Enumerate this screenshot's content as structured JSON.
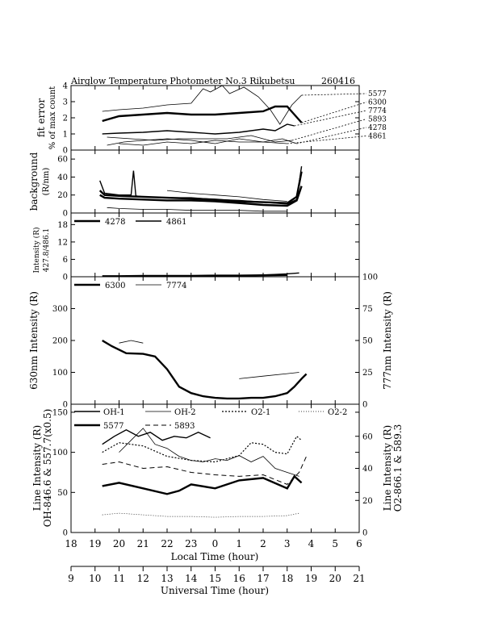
{
  "title": "Airglow Temperature Photometer No.3  Rikubetsu",
  "date_code": "260416",
  "local_axis": {
    "label": "Local Time (hour)",
    "ticks": [
      "18",
      "19",
      "20",
      "21",
      "22",
      "23",
      "0",
      "1",
      "2",
      "3",
      "4",
      "5",
      "6"
    ]
  },
  "ut_axis": {
    "label": "Universal Time (hour)",
    "ticks": [
      "9",
      "10",
      "11",
      "12",
      "13",
      "14",
      "15",
      "16",
      "17",
      "18",
      "19",
      "20",
      "21"
    ]
  },
  "colors": {
    "ink": "#000000",
    "background": "#ffffff"
  },
  "chart_data": [
    {
      "type": "line",
      "ylabel": "fit error",
      "ylabel2": "% of max count",
      "ylim": [
        0,
        4
      ],
      "yticks": [
        "0",
        "1",
        "2",
        "3",
        "4"
      ],
      "legend": [
        "5577",
        "6300",
        "7774",
        "5893",
        "4278",
        "4861"
      ],
      "series": [
        {
          "name": "5577",
          "style": "solid-thin",
          "x": [
            19.3,
            20,
            21,
            22,
            23,
            23.5,
            23.8,
            24.3,
            24.6,
            25.2,
            25.8,
            26.3,
            26.7,
            27.2,
            27.6
          ],
          "y": [
            2.4,
            2.5,
            2.6,
            2.8,
            2.9,
            3.8,
            3.6,
            4.0,
            3.5,
            3.9,
            3.3,
            2.5,
            1.6,
            2.8,
            3.4
          ]
        },
        {
          "name": "6300",
          "style": "solid-thick",
          "x": [
            19.3,
            20,
            21,
            22,
            23,
            24,
            25,
            26,
            26.5,
            27,
            27.3,
            27.6
          ],
          "y": [
            1.8,
            2.1,
            2.2,
            2.3,
            2.2,
            2.2,
            2.3,
            2.4,
            2.7,
            2.7,
            2.2,
            1.7
          ]
        },
        {
          "name": "7774",
          "style": "solid",
          "x": [
            19.3,
            20,
            21,
            22,
            23,
            24,
            25,
            26,
            26.5,
            27,
            27.3
          ],
          "y": [
            1.0,
            1.05,
            1.1,
            1.2,
            1.1,
            1.0,
            1.1,
            1.3,
            1.2,
            1.6,
            1.5
          ]
        },
        {
          "name": "5893",
          "style": "solid-thin",
          "x": [
            19.5,
            20.5,
            21.5,
            22.5,
            23.5,
            24.5,
            25.5,
            26.5,
            27.2
          ],
          "y": [
            0.8,
            0.7,
            0.6,
            0.7,
            0.7,
            0.7,
            0.9,
            0.5,
            0.6
          ]
        },
        {
          "name": "4278",
          "style": "solid-thin",
          "x": [
            19.5,
            20.2,
            21,
            22,
            23,
            24,
            25,
            26,
            26.8,
            27.4
          ],
          "y": [
            0.3,
            0.5,
            0.6,
            0.7,
            0.6,
            0.4,
            0.7,
            0.5,
            0.7,
            0.4
          ]
        },
        {
          "name": "4861",
          "style": "solid-thin",
          "x": [
            20,
            21,
            22,
            23,
            24,
            25,
            26,
            27
          ],
          "y": [
            0.4,
            0.3,
            0.5,
            0.4,
            0.6,
            0.5,
            0.5,
            0.4
          ]
        }
      ]
    },
    {
      "type": "line",
      "ylabel": "background",
      "ylabel2": "(R/nm)",
      "ylim": [
        0,
        70
      ],
      "yticks": [
        "0",
        "20",
        "40",
        "60"
      ],
      "series": [
        {
          "name": "bg-1",
          "style": "solid-thick",
          "x": [
            19.2,
            19.4,
            20,
            21,
            22,
            23,
            24,
            25,
            26,
            27,
            27.4,
            27.6
          ],
          "y": [
            25,
            20,
            19,
            18,
            17,
            16,
            15,
            13,
            12,
            11,
            18,
            46
          ]
        },
        {
          "name": "bg-2",
          "style": "solid-thick",
          "x": [
            19.2,
            19.4,
            20,
            21,
            22,
            23,
            24,
            25,
            26,
            27,
            27.4,
            27.6
          ],
          "y": [
            20,
            17,
            16,
            15,
            14,
            14,
            13,
            11,
            9,
            8,
            14,
            30
          ]
        },
        {
          "name": "bg-3",
          "style": "solid",
          "x": [
            19.2,
            19.4,
            20,
            20.5,
            20.6,
            20.7,
            21,
            22,
            23,
            24,
            25,
            26,
            27,
            27.4,
            27.6
          ],
          "y": [
            36,
            22,
            20,
            20,
            47,
            19,
            18,
            17,
            17,
            15,
            14,
            12,
            10,
            15,
            52
          ]
        },
        {
          "name": "bg-4",
          "style": "solid-thin",
          "x": [
            19.5,
            20,
            21,
            22,
            23,
            24,
            25,
            26,
            27
          ],
          "y": [
            6,
            5,
            4,
            4,
            3,
            3,
            3,
            2,
            2
          ]
        },
        {
          "name": "bg-5",
          "style": "solid-thin",
          "x": [
            22,
            23,
            24,
            25,
            26,
            27
          ],
          "y": [
            25,
            22,
            20,
            18,
            15,
            13
          ]
        }
      ]
    },
    {
      "type": "line",
      "ylabel": "Intensity (R)",
      "ylabel2": "427.8/486.1",
      "ylim": [
        0,
        22
      ],
      "yticks": [
        "0",
        "6",
        "12",
        "18"
      ],
      "legend": [
        "4278",
        "4861"
      ],
      "series": [
        {
          "name": "4278",
          "style": "solid-thick",
          "x": [
            19.3,
            20,
            21,
            22,
            23,
            24,
            25,
            26,
            27
          ],
          "y": [
            0.2,
            0.2,
            0.3,
            0.3,
            0.3,
            0.4,
            0.4,
            0.5,
            0.6
          ]
        },
        {
          "name": "4861",
          "style": "solid",
          "x": [
            25,
            26,
            27,
            27.5
          ],
          "y": [
            0.2,
            0.6,
            1.0,
            1.3
          ]
        }
      ]
    },
    {
      "type": "line",
      "ylabel": "630nm Intensity (R)",
      "ylabel2": "777nm Intensity (R)",
      "ylim": [
        0,
        400
      ],
      "y2lim": [
        0,
        100
      ],
      "yticks": [
        "0",
        "100",
        "200",
        "300"
      ],
      "y2ticks": [
        "0",
        "25",
        "50",
        "75",
        "100"
      ],
      "legend": [
        "6300",
        "7774"
      ],
      "series": [
        {
          "name": "6300",
          "style": "solid-thick",
          "x": [
            19.3,
            19.7,
            20.3,
            21,
            21.5,
            22,
            22.5,
            23,
            23.5,
            24,
            24.5,
            25,
            25.5,
            26,
            26.5,
            27,
            27.3,
            27.6,
            27.8
          ],
          "y": [
            200,
            182,
            160,
            158,
            150,
            110,
            55,
            35,
            25,
            20,
            18,
            18,
            20,
            20,
            25,
            35,
            55,
            80,
            95
          ]
        },
        {
          "name": "7774",
          "style": "solid-thin",
          "x": [
            20,
            20.5,
            21
          ],
          "y": [
            48,
            50,
            48
          ]
        },
        {
          "name": "7774-late",
          "style": "solid-thin",
          "x": [
            25,
            26,
            27,
            27.5
          ],
          "y": [
            20,
            22,
            24,
            25
          ]
        }
      ]
    },
    {
      "type": "line",
      "ylabel": "Line Intensity (R)",
      "ylabel2": "OH-846.6 & 557.7(x0.5)",
      "y2label": "Line Intensity (R)",
      "y2label2": "O2-866.1 & 589.3",
      "ylim": [
        0,
        160
      ],
      "y2lim": [
        0,
        80
      ],
      "yticks": [
        "0",
        "50",
        "100",
        "150"
      ],
      "y2ticks": [
        "0",
        "20",
        "40",
        "60"
      ],
      "legend": [
        "OH-1",
        "OH-2",
        "O2-1",
        "O2-2",
        "5577",
        "5893"
      ],
      "series": [
        {
          "name": "OH-1",
          "style": "solid",
          "x": [
            19.3,
            19.8,
            20.3,
            20.8,
            21.3,
            21.8,
            22.3,
            22.8,
            23.3,
            23.8
          ],
          "y": [
            110,
            120,
            128,
            120,
            125,
            115,
            120,
            118,
            125,
            118
          ]
        },
        {
          "name": "OH-2",
          "style": "solid-thin",
          "x": [
            20,
            20.5,
            21,
            21.5,
            22,
            22.5,
            23,
            23.5,
            24,
            24.5,
            25,
            25.5,
            26,
            26.5,
            27,
            27.5
          ],
          "y": [
            100,
            115,
            130,
            110,
            105,
            95,
            90,
            88,
            92,
            90,
            96,
            88,
            95,
            80,
            75,
            70
          ]
        },
        {
          "name": "O2-1",
          "style": "dotted",
          "x": [
            19.3,
            20,
            21,
            22,
            23,
            24,
            25,
            25.5,
            26,
            26.5,
            27,
            27.4,
            27.6
          ],
          "y": [
            100,
            112,
            108,
            95,
            90,
            88,
            96,
            112,
            110,
            100,
            98,
            120,
            115
          ]
        },
        {
          "name": "O2-2",
          "style": "dotted-fine",
          "x": [
            19.3,
            20,
            21,
            22,
            23,
            24,
            25,
            26,
            27,
            27.5
          ],
          "y": [
            22,
            24,
            22,
            20,
            20,
            19,
            20,
            20,
            21,
            24
          ]
        },
        {
          "name": "5577",
          "style": "solid-thick",
          "x": [
            19.3,
            20,
            21,
            22,
            22.5,
            23,
            24,
            25,
            26,
            27,
            27.3,
            27.6
          ],
          "y": [
            58,
            62,
            55,
            48,
            52,
            60,
            55,
            65,
            68,
            55,
            70,
            62
          ]
        },
        {
          "name": "5893",
          "style": "dashed",
          "x": [
            19.3,
            20,
            21,
            22,
            23,
            24,
            25,
            26,
            27,
            27.5,
            27.8
          ],
          "y": [
            85,
            88,
            80,
            82,
            75,
            72,
            70,
            72,
            60,
            75,
            95
          ]
        }
      ]
    }
  ]
}
